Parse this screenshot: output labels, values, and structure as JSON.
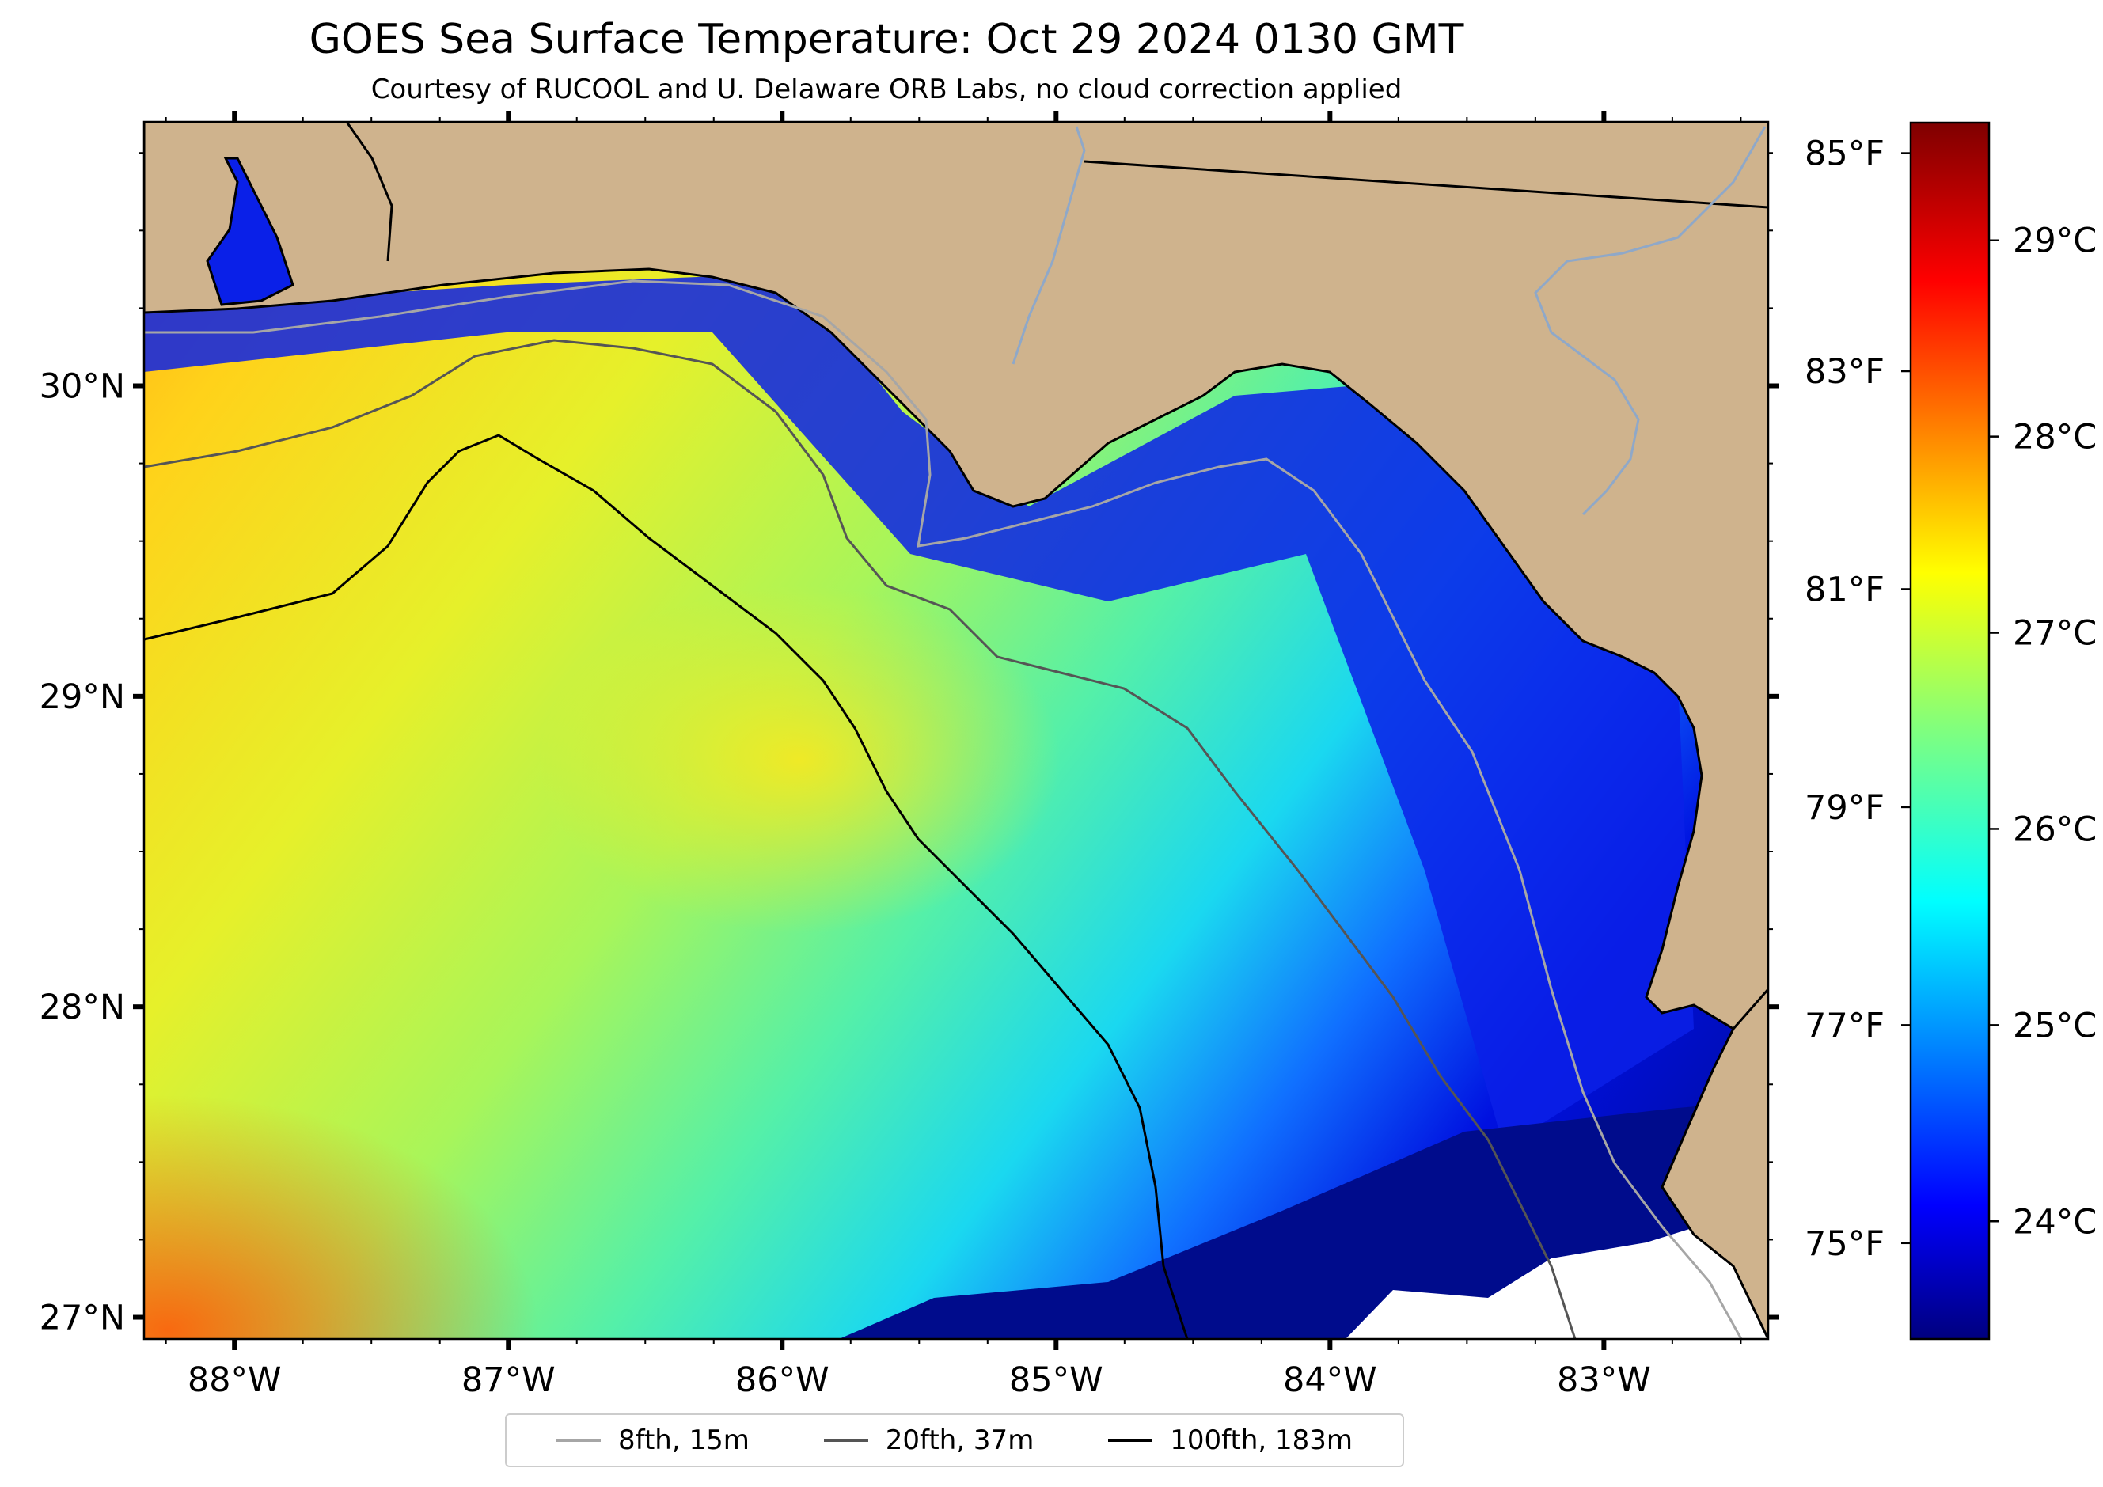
{
  "title": "GOES Sea Surface Temperature: Oct 29 2024 0130 GMT",
  "subtitle": "Courtesy of RUCOOL and U. Delaware ORB Labs, no cloud correction applied",
  "map": {
    "lon_range": [
      -88.33,
      -82.4
    ],
    "lat_range": [
      26.93,
      30.85
    ],
    "land_color": "#cfb38d",
    "no_data_color": "#ffffff",
    "lon_ticks": [
      {
        "value": -88,
        "label": "88°W"
      },
      {
        "value": -87,
        "label": "87°W"
      },
      {
        "value": -86,
        "label": "86°W"
      },
      {
        "value": -85,
        "label": "85°W"
      },
      {
        "value": -84,
        "label": "84°W"
      },
      {
        "value": -83,
        "label": "83°W"
      }
    ],
    "lat_ticks": [
      {
        "value": 30,
        "label": "30°N"
      },
      {
        "value": 29,
        "label": "29°N"
      },
      {
        "value": 28,
        "label": "28°N"
      },
      {
        "value": 27,
        "label": "27°N"
      }
    ]
  },
  "colorbar": {
    "colormap": "jet",
    "celsius_range": [
      23.4,
      29.6
    ],
    "celsius_ticks": [
      {
        "value": 24,
        "label": "24°C"
      },
      {
        "value": 25,
        "label": "25°C"
      },
      {
        "value": 26,
        "label": "26°C"
      },
      {
        "value": 27,
        "label": "27°C"
      },
      {
        "value": 28,
        "label": "28°C"
      },
      {
        "value": 29,
        "label": "29°C"
      }
    ],
    "fahrenheit_ticks": [
      {
        "value": 75,
        "label": "75°F"
      },
      {
        "value": 77,
        "label": "77°F"
      },
      {
        "value": 79,
        "label": "79°F"
      },
      {
        "value": 81,
        "label": "81°F"
      },
      {
        "value": 83,
        "label": "83°F"
      },
      {
        "value": 85,
        "label": "85°F"
      }
    ]
  },
  "legend": [
    {
      "label": "8fth, 15m",
      "color": "#a6a6a6"
    },
    {
      "label": "20fth, 37m",
      "color": "#555555"
    },
    {
      "label": "100fth, 183m",
      "color": "#000000"
    }
  ]
}
